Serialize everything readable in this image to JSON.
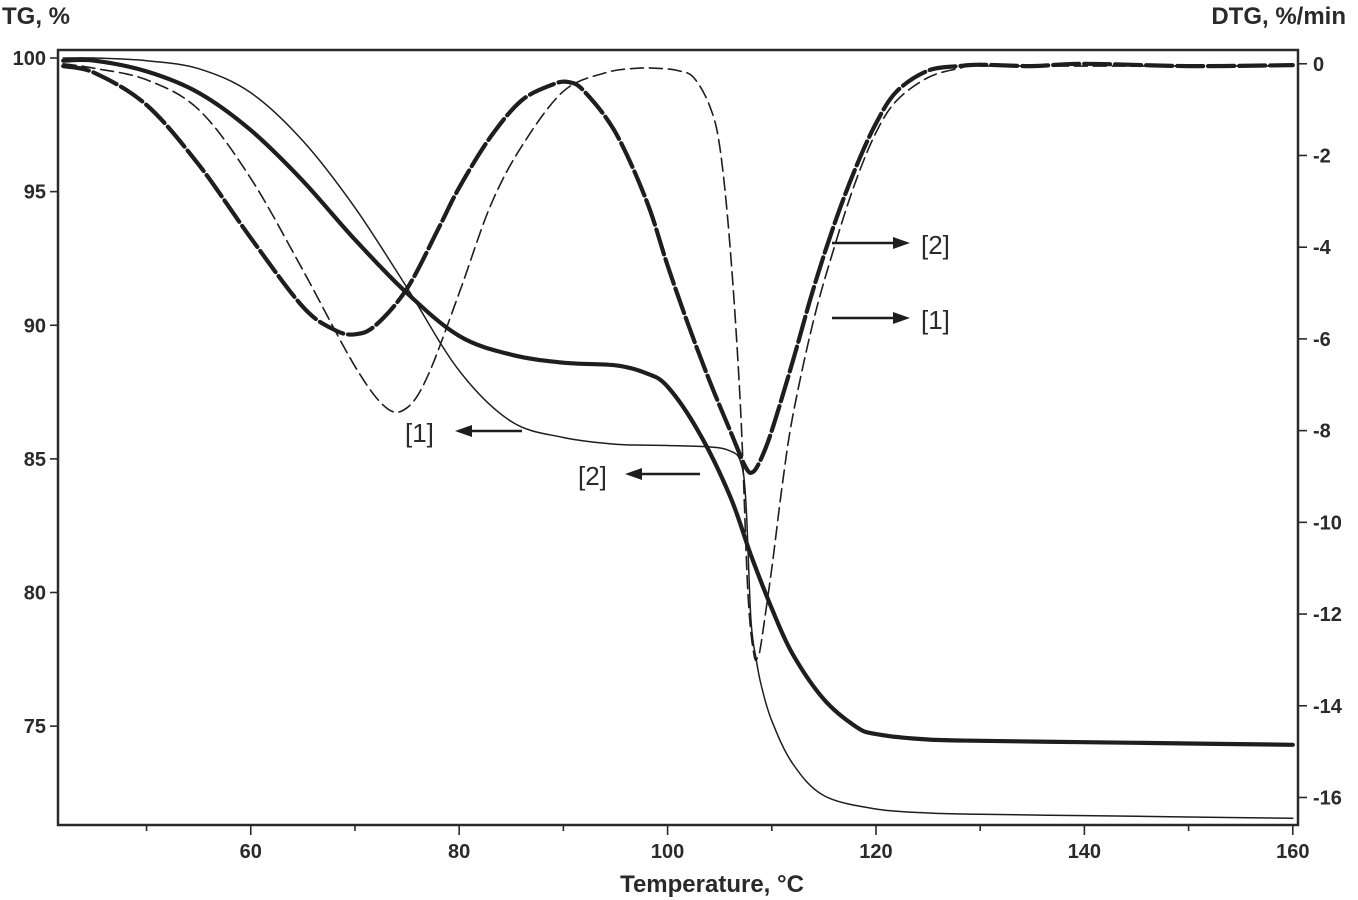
{
  "chart_data": {
    "type": "line",
    "title": "",
    "xlabel": "Temperature, °C",
    "ylabel_left": "TG, %",
    "ylabel_right": "DTG, %/min",
    "xlim": [
      41.5,
      160.5
    ],
    "ylim_left": [
      71.3,
      100.3
    ],
    "ylim_right": [
      -16.6,
      0.3
    ],
    "x_ticks": [
      60,
      80,
      100,
      120,
      140,
      160
    ],
    "y_left_ticks": [
      75,
      80,
      85,
      90,
      95,
      100
    ],
    "y_right_ticks": [
      0,
      -2,
      -4,
      -6,
      -8,
      -10,
      -12,
      -14,
      -16
    ],
    "grid": false,
    "legend": "none",
    "series": [
      {
        "axis": "left",
        "label": "[1]",
        "style": "thin-solid",
        "x": [
          42,
          45,
          50,
          55,
          60,
          65,
          70,
          75,
          80,
          85,
          90,
          95,
          100,
          104,
          106,
          107,
          107.5,
          108,
          108.5,
          109,
          110,
          112,
          115,
          120,
          125,
          130,
          140,
          150,
          160
        ],
        "y": [
          100.0,
          100.0,
          99.9,
          99.6,
          98.7,
          96.9,
          94.4,
          91.4,
          88.3,
          86.4,
          85.8,
          85.55,
          85.5,
          85.45,
          85.3,
          84.9,
          83.5,
          79.0,
          77.5,
          76.5,
          75.2,
          73.6,
          72.4,
          71.9,
          71.75,
          71.7,
          71.65,
          71.6,
          71.55
        ]
      },
      {
        "axis": "left",
        "label": "[2]",
        "style": "thick-solid",
        "x": [
          42,
          45,
          50,
          55,
          60,
          65,
          70,
          75,
          80,
          85,
          90,
          95,
          98,
          100,
          103,
          106,
          108,
          110,
          112,
          115,
          118,
          120,
          125,
          130,
          140,
          150,
          160
        ],
        "y": [
          99.9,
          99.9,
          99.5,
          98.7,
          97.3,
          95.4,
          93.2,
          91.2,
          89.6,
          88.9,
          88.6,
          88.5,
          88.2,
          87.7,
          86.0,
          83.6,
          81.4,
          79.4,
          77.7,
          76.0,
          75.0,
          74.7,
          74.5,
          74.45,
          74.4,
          74.35,
          74.3
        ]
      },
      {
        "axis": "right",
        "label": "[1]",
        "style": "thin-dashed",
        "x": [
          42,
          45,
          50,
          55,
          60,
          65,
          70,
          73,
          75,
          77,
          80,
          83,
          86,
          90,
          94,
          97,
          99,
          101,
          102.5,
          104,
          105,
          106,
          107,
          107.7,
          108.3,
          108.7,
          109,
          110,
          111,
          112,
          114,
          116,
          118,
          120,
          122,
          125,
          128,
          130,
          140,
          150,
          160
        ],
        "y": [
          0.0,
          -0.1,
          -0.35,
          -1.0,
          -2.5,
          -4.5,
          -6.6,
          -7.5,
          -7.5,
          -6.8,
          -5.0,
          -3.1,
          -1.8,
          -0.6,
          -0.2,
          -0.1,
          -0.1,
          -0.15,
          -0.3,
          -0.9,
          -1.8,
          -4.0,
          -7.5,
          -11.5,
          -12.9,
          -12.9,
          -12.6,
          -11.0,
          -9.2,
          -7.7,
          -5.6,
          -4.0,
          -2.6,
          -1.5,
          -0.8,
          -0.3,
          -0.1,
          -0.05,
          -0.05,
          -0.05,
          -0.05
        ]
      },
      {
        "axis": "right",
        "label": "[2]",
        "style": "thick-dashed",
        "x": [
          42,
          45,
          50,
          55,
          60,
          65,
          68,
          70,
          72,
          75,
          78,
          80,
          83,
          86,
          89,
          90.5,
          92,
          95,
          98,
          100,
          102,
          104,
          106,
          107.5,
          108.2,
          109,
          110,
          112,
          114,
          116,
          118,
          120,
          122,
          125,
          128,
          130,
          135,
          140,
          150,
          160
        ],
        "y": [
          -0.05,
          -0.2,
          -0.9,
          -2.2,
          -3.8,
          -5.3,
          -5.8,
          -5.9,
          -5.7,
          -4.9,
          -3.6,
          -2.7,
          -1.6,
          -0.8,
          -0.45,
          -0.4,
          -0.6,
          -1.5,
          -3.0,
          -4.4,
          -5.7,
          -6.9,
          -8.0,
          -8.8,
          -8.9,
          -8.6,
          -8.0,
          -6.5,
          -4.9,
          -3.5,
          -2.3,
          -1.3,
          -0.6,
          -0.15,
          -0.05,
          -0.02,
          -0.05,
          0.0,
          -0.05,
          -0.03
        ]
      }
    ],
    "annotations": [
      {
        "text": "[1]",
        "curve": "TG [1]"
      },
      {
        "text": "[2]",
        "curve": "TG [2]"
      },
      {
        "text": "[2]",
        "curve": "DTG [2]"
      },
      {
        "text": "[1]",
        "curve": "DTG [1]"
      }
    ]
  }
}
